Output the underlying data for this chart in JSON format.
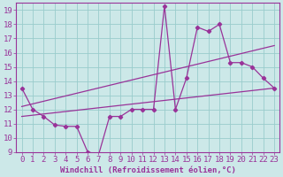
{
  "xlabel": "Windchill (Refroidissement éolien,°C)",
  "xlim": [
    -0.5,
    23.5
  ],
  "ylim": [
    9,
    19.5
  ],
  "xticks": [
    0,
    1,
    2,
    3,
    4,
    5,
    6,
    7,
    8,
    9,
    10,
    11,
    12,
    13,
    14,
    15,
    16,
    17,
    18,
    19,
    20,
    21,
    22,
    23
  ],
  "yticks": [
    9,
    10,
    11,
    12,
    13,
    14,
    15,
    16,
    17,
    18,
    19
  ],
  "background_color": "#cce8e8",
  "line_color": "#993399",
  "grid_color": "#99cccc",
  "font_size": 6.5,
  "line1_x": [
    0,
    1,
    2,
    3,
    4,
    5,
    6,
    7,
    8,
    9,
    10,
    11,
    12,
    13,
    14,
    15,
    16,
    17,
    18,
    19,
    20,
    21,
    22,
    23
  ],
  "line1_y": [
    13.5,
    12.0,
    11.5,
    10.9,
    10.8,
    10.8,
    9.0,
    8.8,
    11.5,
    11.5,
    12.0,
    12.0,
    12.0,
    19.3,
    12.0,
    14.2,
    17.8,
    17.5,
    18.0,
    15.3,
    15.3,
    15.0,
    14.2,
    13.5
  ],
  "line2_x": [
    0,
    23
  ],
  "line2_y": [
    11.5,
    13.5
  ],
  "line3_x": [
    0,
    23
  ],
  "line3_y": [
    12.2,
    16.5
  ]
}
